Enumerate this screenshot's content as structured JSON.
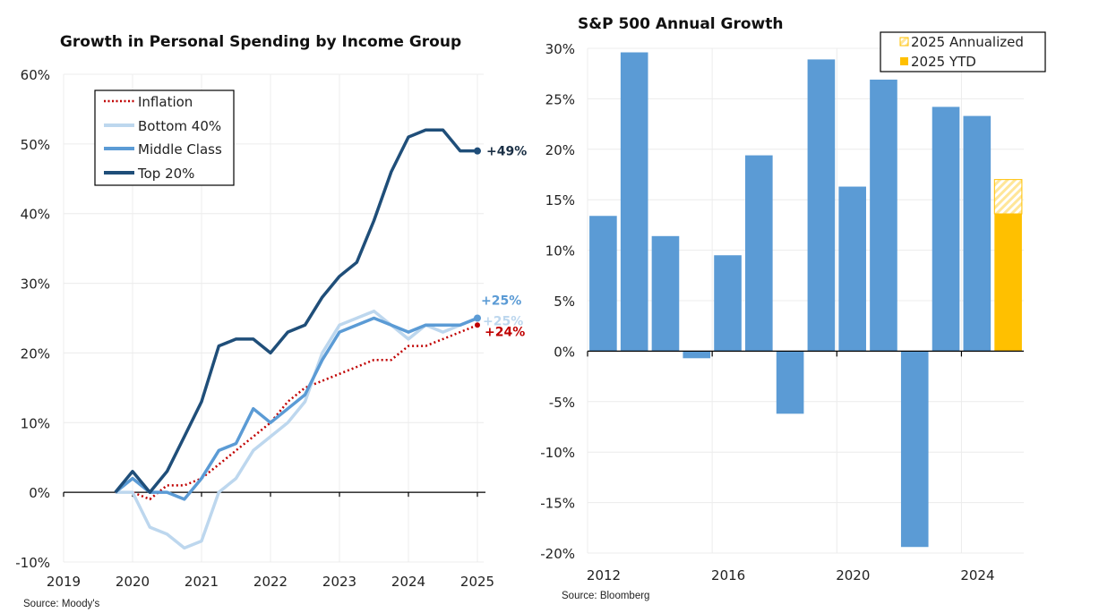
{
  "chart_data": [
    {
      "type": "line",
      "title": "Growth in Personal Spending by Income Group",
      "source": "Source: Moody's",
      "xlabel": "",
      "ylabel": "",
      "xlim": [
        2019,
        2025
      ],
      "ylim": [
        -10,
        60
      ],
      "x_ticks": [
        "2019",
        "2020",
        "2021",
        "2022",
        "2023",
        "2024",
        "2025"
      ],
      "y_ticks": [
        "60%",
        "50%",
        "40%",
        "30%",
        "20%",
        "10%",
        "0%",
        "-10%"
      ],
      "y_tick_values": [
        60,
        50,
        40,
        30,
        20,
        10,
        0,
        -10
      ],
      "grid": true,
      "legend_position": "top-left",
      "x": [
        2019.75,
        2020.0,
        2020.25,
        2020.5,
        2020.75,
        2021.0,
        2021.25,
        2021.5,
        2021.75,
        2022.0,
        2022.25,
        2022.5,
        2022.75,
        2023.0,
        2023.25,
        2023.5,
        2023.75,
        2024.0,
        2024.25,
        2024.5,
        2024.75,
        2025.0
      ],
      "series": [
        {
          "name": "Inflation",
          "color": "#c00000",
          "style": "dotted",
          "end_label": "+24%",
          "values": [
            0,
            0,
            -1,
            1,
            1,
            2,
            4,
            6,
            8,
            10,
            13,
            15,
            16,
            17,
            18,
            19,
            19,
            21,
            21,
            22,
            23,
            24
          ]
        },
        {
          "name": "Bottom 40%",
          "color": "#bdd7ee",
          "style": "solid",
          "end_label": "+25%",
          "values": [
            0,
            0,
            -5,
            -6,
            -8,
            -7,
            0,
            2,
            6,
            8,
            10,
            13,
            20,
            24,
            25,
            26,
            24,
            22,
            24,
            23,
            24,
            25
          ]
        },
        {
          "name": "Middle Class",
          "color": "#5b9bd5",
          "style": "solid",
          "end_label": "+25%",
          "values": [
            0,
            2,
            0,
            0,
            -1,
            2,
            6,
            7,
            12,
            10,
            12,
            14,
            19,
            23,
            24,
            25,
            24,
            23,
            24,
            24,
            24,
            25
          ]
        },
        {
          "name": "Top 20%",
          "color": "#1f4e79",
          "style": "solid",
          "end_label": "+49%",
          "values": [
            0,
            3,
            0,
            3,
            8,
            13,
            21,
            22,
            22,
            20,
            23,
            24,
            28,
            31,
            33,
            39,
            46,
            51,
            52,
            52,
            49,
            49
          ]
        }
      ]
    },
    {
      "type": "bar",
      "title": "S&P 500 Annual Growth",
      "source": "Source: Bloomberg",
      "xlabel": "",
      "ylabel": "",
      "ylim": [
        -20,
        30
      ],
      "y_ticks": [
        "30%",
        "25%",
        "20%",
        "15%",
        "10%",
        "5%",
        "0%",
        "-5%",
        "-10%",
        "-15%",
        "-20%"
      ],
      "y_tick_values": [
        30,
        25,
        20,
        15,
        10,
        5,
        0,
        -5,
        -10,
        -15,
        -20
      ],
      "x_ticks": [
        "2012",
        "2016",
        "2020",
        "2024"
      ],
      "grid": true,
      "legend_position": "top-right",
      "categories": [
        "2012",
        "2013",
        "2014",
        "2015",
        "2016",
        "2017",
        "2018",
        "2019",
        "2020",
        "2021",
        "2022",
        "2023",
        "2024",
        "2025"
      ],
      "values": [
        13.4,
        29.6,
        11.4,
        -0.7,
        9.5,
        19.4,
        -6.2,
        28.9,
        16.3,
        26.9,
        -19.4,
        24.2,
        23.3,
        13.6
      ],
      "bar_color": "#5b9bd5",
      "ytd_2025": {
        "name": "2025 YTD",
        "value": 13.6,
        "color": "#ffc000"
      },
      "annualized_2025": {
        "name": "2025 Annualized",
        "value": 17.0,
        "color": "#ffc000"
      },
      "legend": [
        "2025 Annualized",
        "2025 YTD"
      ]
    }
  ]
}
